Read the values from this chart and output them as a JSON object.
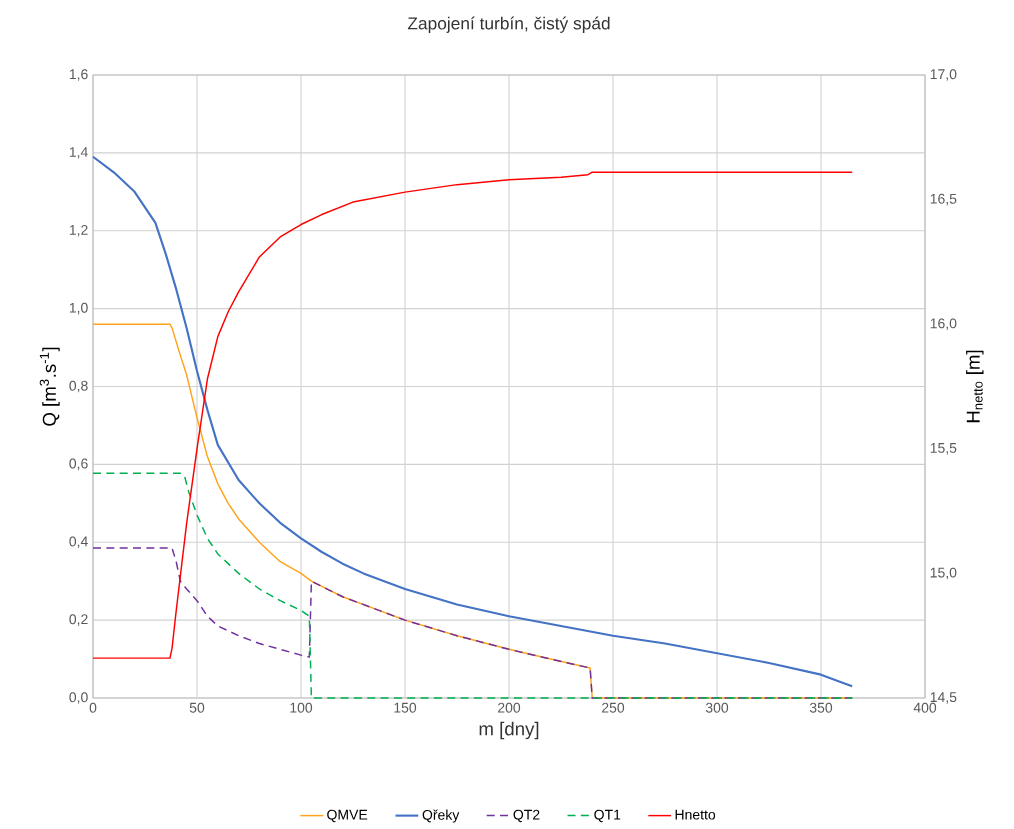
{
  "chart_data": {
    "type": "line",
    "title": "Zapojení turbín, čistý spád",
    "xlabel": "m [dny]",
    "ylabel": "Q [m$^{3}$.s$^{-1}$]",
    "y2label": "H$_{netto}$ [m]",
    "xlim": [
      0,
      400
    ],
    "xticks": [
      0,
      50,
      100,
      150,
      200,
      250,
      300,
      350,
      400
    ],
    "ylim": [
      0,
      1.6
    ],
    "yticks": [
      {
        "value": 0,
        "label": "0,0"
      },
      {
        "value": 0.2,
        "label": "0,2"
      },
      {
        "value": 0.4,
        "label": "0,4"
      },
      {
        "value": 0.6,
        "label": "0,6"
      },
      {
        "value": 0.8,
        "label": "0,8"
      },
      {
        "value": 1.0,
        "label": "1,0"
      },
      {
        "value": 1.2,
        "label": "1,2"
      },
      {
        "value": 1.4,
        "label": "1,4"
      },
      {
        "value": 1.6,
        "label": "1,6"
      }
    ],
    "y2lim": [
      14.5,
      17.0
    ],
    "y2ticks": [
      {
        "value": 14.5,
        "label": "14,5"
      },
      {
        "value": 15.0,
        "label": "15,0"
      },
      {
        "value": 15.5,
        "label": "15,5"
      },
      {
        "value": 16.0,
        "label": "16,0"
      },
      {
        "value": 16.5,
        "label": "16,5"
      },
      {
        "value": 17.0,
        "label": "17,0"
      }
    ],
    "grid": true,
    "legend": "bottom",
    "series": [
      {
        "name": "QMVE",
        "color": "#ffa31a",
        "line_style": "solid",
        "x": [
          0,
          37,
          38,
          42,
          45,
          50,
          55,
          60,
          65,
          70,
          80,
          90,
          100,
          105,
          120,
          150,
          175,
          200,
          220,
          239,
          240,
          365
        ],
        "values": [
          0.96,
          0.96,
          0.95,
          0.88,
          0.83,
          0.72,
          0.62,
          0.55,
          0.5,
          0.46,
          0.4,
          0.35,
          0.32,
          0.3,
          0.26,
          0.2,
          0.16,
          0.125,
          0.1,
          0.077,
          0,
          0
        ]
      },
      {
        "name": "Qřeky",
        "color": "#4472c4",
        "line_style": "solid",
        "x": [
          0,
          10,
          20,
          30,
          35,
          40,
          45,
          50,
          55,
          60,
          70,
          80,
          90,
          100,
          110,
          120,
          130,
          140,
          150,
          175,
          200,
          225,
          250,
          275,
          300,
          325,
          350,
          360,
          365
        ],
        "values": [
          1.39,
          1.35,
          1.3,
          1.22,
          1.14,
          1.05,
          0.95,
          0.84,
          0.74,
          0.65,
          0.56,
          0.5,
          0.45,
          0.41,
          0.375,
          0.345,
          0.32,
          0.3,
          0.28,
          0.24,
          0.21,
          0.185,
          0.16,
          0.14,
          0.115,
          0.09,
          0.06,
          0.04,
          0.03
        ]
      },
      {
        "name": "QT2",
        "color": "#7030a0",
        "line_style": "dashed",
        "x": [
          0,
          38,
          40,
          42,
          45,
          50,
          55,
          60,
          70,
          80,
          90,
          100,
          104,
          105,
          120,
          150,
          175,
          200,
          220,
          239,
          240,
          365
        ],
        "values": [
          0.385,
          0.385,
          0.35,
          0.3,
          0.28,
          0.25,
          0.21,
          0.185,
          0.16,
          0.14,
          0.125,
          0.11,
          0.105,
          0.3,
          0.26,
          0.2,
          0.16,
          0.125,
          0.1,
          0.077,
          0,
          0
        ]
      },
      {
        "name": "QT1",
        "color": "#00b050",
        "line_style": "dashed",
        "x": [
          0,
          42,
          44,
          46,
          50,
          55,
          60,
          70,
          80,
          90,
          100,
          104,
          105,
          365
        ],
        "values": [
          0.577,
          0.577,
          0.57,
          0.53,
          0.47,
          0.41,
          0.37,
          0.32,
          0.28,
          0.25,
          0.225,
          0.21,
          0,
          0
        ]
      },
      {
        "name": "Hnetto",
        "color": "#ff0000",
        "line_style": "solid",
        "axis": "y2",
        "x": [
          0,
          37,
          38,
          40,
          45,
          50,
          55,
          60,
          65,
          70,
          80,
          90,
          100,
          110,
          125,
          150,
          175,
          200,
          225,
          238,
          240,
          365
        ],
        "values": [
          14.66,
          14.66,
          14.7,
          14.85,
          15.2,
          15.5,
          15.78,
          15.95,
          16.05,
          16.13,
          16.27,
          16.35,
          16.4,
          16.44,
          16.49,
          16.53,
          16.56,
          16.58,
          16.59,
          16.6,
          16.61,
          16.61
        ]
      }
    ]
  }
}
